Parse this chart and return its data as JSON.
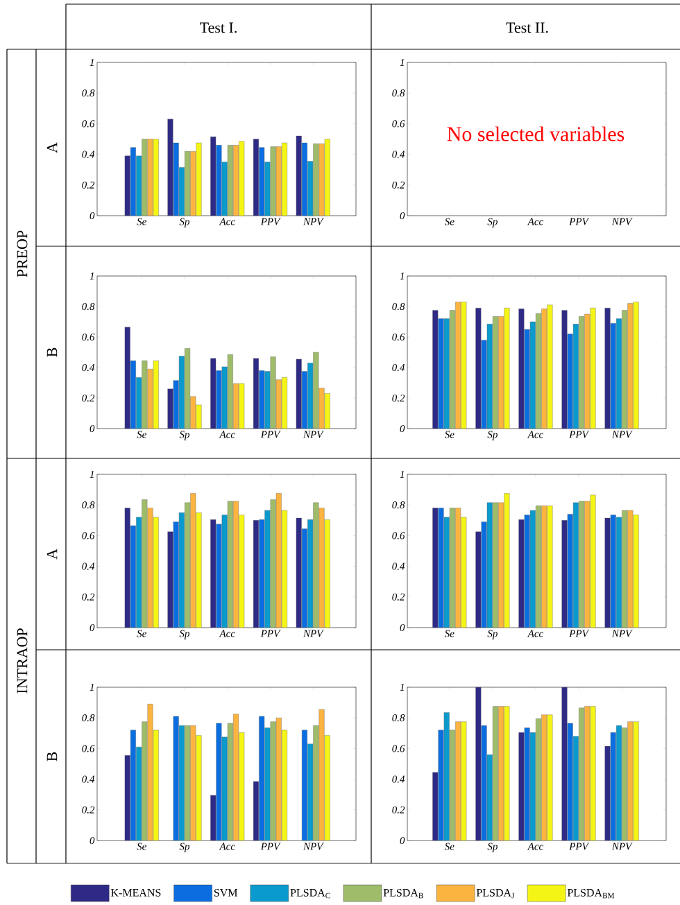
{
  "chart_data": [
    {
      "type": "other",
      "annotations": [
        "Test I.",
        "Test II.",
        "PREOP",
        "INTRAOP",
        "A",
        "B",
        "A",
        "B"
      ]
    },
    {
      "type": "bar",
      "categories": [
        "Se",
        "Sp",
        "Acc",
        "PPV",
        "NPV"
      ],
      "ylim": [
        0,
        1
      ],
      "yticks": [
        0,
        0.2,
        0.4,
        0.6,
        0.8,
        1
      ],
      "legend": "bottom",
      "series": [
        {
          "name": "K-MEANS",
          "color": "#2e2a85",
          "values": [
            0.39,
            0.63,
            0.515,
            0.5,
            0.52
          ]
        },
        {
          "name": "SVM",
          "color": "#0a6ee0",
          "values": [
            0.445,
            0.475,
            0.46,
            0.445,
            0.475
          ]
        },
        {
          "name": "PLSDA$_{C}$",
          "color": "#0a9acd",
          "values": [
            0.39,
            0.315,
            0.35,
            0.35,
            0.355
          ]
        },
        {
          "name": "PLSDA$_{B}$",
          "color": "#9ebc6a",
          "values": [
            0.5,
            0.42,
            0.46,
            0.45,
            0.47
          ]
        },
        {
          "name": "PLSDA$_{J}$",
          "color": "#fbb440",
          "values": [
            0.5,
            0.42,
            0.46,
            0.45,
            0.47
          ]
        },
        {
          "name": "PLSDA$_{BM}$",
          "color": "#f5f515",
          "values": [
            0.5,
            0.475,
            0.485,
            0.475,
            0.5
          ]
        }
      ]
    },
    {
      "type": "bar",
      "categories": [
        "Se",
        "Sp",
        "Acc",
        "PPV",
        "NPV"
      ],
      "ylim": [
        0,
        1
      ],
      "yticks": [
        0,
        0.2,
        0.4,
        0.6,
        0.8,
        1
      ],
      "annotations": [
        "No selected variables"
      ]
    },
    {
      "type": "bar",
      "categories": [
        "Se",
        "Sp",
        "Acc",
        "PPV",
        "NPV"
      ],
      "ylim": [
        0,
        1
      ],
      "yticks": [
        0,
        0.2,
        0.4,
        0.6,
        0.8,
        1
      ],
      "series": [
        {
          "color": "#2e2a85",
          "values": [
            0.665,
            0.26,
            0.46,
            0.46,
            0.455
          ]
        },
        {
          "color": "#0a6ee0",
          "values": [
            0.445,
            0.315,
            0.38,
            0.38,
            0.375
          ]
        },
        {
          "color": "#0a9acd",
          "values": [
            0.335,
            0.475,
            0.405,
            0.375,
            0.43
          ]
        },
        {
          "color": "#9ebc6a",
          "values": [
            0.445,
            0.525,
            0.485,
            0.47,
            0.5
          ]
        },
        {
          "color": "#fbb440",
          "values": [
            0.39,
            0.21,
            0.295,
            0.32,
            0.265
          ]
        },
        {
          "color": "#f5f515",
          "values": [
            0.445,
            0.155,
            0.295,
            0.335,
            0.23
          ]
        }
      ]
    },
    {
      "type": "bar",
      "categories": [
        "Se",
        "Sp",
        "Acc",
        "PPV",
        "NPV"
      ],
      "ylim": [
        0,
        1
      ],
      "yticks": [
        0,
        0.2,
        0.4,
        0.6,
        0.8,
        1
      ],
      "series": [
        {
          "color": "#2e2a85",
          "values": [
            0.775,
            0.79,
            0.785,
            0.775,
            0.79
          ]
        },
        {
          "color": "#0a6ee0",
          "values": [
            0.72,
            0.58,
            0.65,
            0.62,
            0.69
          ]
        },
        {
          "color": "#0a9acd",
          "values": [
            0.72,
            0.685,
            0.7,
            0.685,
            0.72
          ]
        },
        {
          "color": "#9ebc6a",
          "values": [
            0.775,
            0.735,
            0.755,
            0.735,
            0.775
          ]
        },
        {
          "color": "#fbb440",
          "values": [
            0.83,
            0.735,
            0.785,
            0.75,
            0.82
          ]
        },
        {
          "color": "#f5f515",
          "values": [
            0.83,
            0.79,
            0.81,
            0.79,
            0.83
          ]
        }
      ]
    },
    {
      "type": "bar",
      "categories": [
        "Se",
        "Sp",
        "Acc",
        "PPV",
        "NPV"
      ],
      "ylim": [
        0,
        1
      ],
      "yticks": [
        0,
        0.2,
        0.4,
        0.6,
        0.8,
        1
      ],
      "series": [
        {
          "color": "#2e2a85",
          "values": [
            0.78,
            0.625,
            0.705,
            0.7,
            0.715
          ]
        },
        {
          "color": "#0a6ee0",
          "values": [
            0.665,
            0.69,
            0.675,
            0.705,
            0.645
          ]
        },
        {
          "color": "#0a9acd",
          "values": [
            0.72,
            0.75,
            0.735,
            0.765,
            0.705
          ]
        },
        {
          "color": "#9ebc6a",
          "values": [
            0.835,
            0.815,
            0.825,
            0.835,
            0.815
          ]
        },
        {
          "color": "#fbb440",
          "values": [
            0.78,
            0.875,
            0.825,
            0.875,
            0.78
          ]
        },
        {
          "color": "#f5f515",
          "values": [
            0.72,
            0.75,
            0.735,
            0.765,
            0.705
          ]
        }
      ]
    },
    {
      "type": "bar",
      "categories": [
        "Se",
        "Sp",
        "Acc",
        "PPV",
        "NPV"
      ],
      "ylim": [
        0,
        1
      ],
      "yticks": [
        0,
        0.2,
        0.4,
        0.6,
        0.8,
        1
      ],
      "series": [
        {
          "color": "#2e2a85",
          "values": [
            0.78,
            0.625,
            0.705,
            0.7,
            0.715
          ]
        },
        {
          "color": "#0a6ee0",
          "values": [
            0.78,
            0.69,
            0.735,
            0.74,
            0.735
          ]
        },
        {
          "color": "#0a9acd",
          "values": [
            0.72,
            0.815,
            0.765,
            0.815,
            0.72
          ]
        },
        {
          "color": "#9ebc6a",
          "values": [
            0.78,
            0.815,
            0.795,
            0.825,
            0.765
          ]
        },
        {
          "color": "#fbb440",
          "values": [
            0.78,
            0.815,
            0.795,
            0.825,
            0.765
          ]
        },
        {
          "color": "#f5f515",
          "values": [
            0.72,
            0.875,
            0.795,
            0.865,
            0.735
          ]
        }
      ]
    },
    {
      "type": "bar",
      "categories": [
        "Se",
        "Sp",
        "Acc",
        "PPV",
        "NPV"
      ],
      "ylim": [
        0,
        1
      ],
      "yticks": [
        0,
        0.2,
        0.4,
        0.6,
        0.8,
        1
      ],
      "series": [
        {
          "color": "#2e2a85",
          "values": [
            0.555,
            null,
            0.295,
            0.385,
            null
          ]
        },
        {
          "color": "#0a6ee0",
          "values": [
            0.72,
            0.81,
            0.765,
            0.81,
            0.72
          ]
        },
        {
          "color": "#0a9acd",
          "values": [
            0.61,
            0.75,
            0.675,
            0.735,
            0.63
          ]
        },
        {
          "color": "#9ebc6a",
          "values": [
            0.775,
            0.75,
            0.765,
            0.775,
            0.75
          ]
        },
        {
          "color": "#fbb440",
          "values": [
            0.89,
            0.75,
            0.825,
            0.8,
            0.855
          ]
        },
        {
          "color": "#f5f515",
          "values": [
            0.72,
            0.685,
            0.705,
            0.72,
            0.685
          ]
        }
      ]
    },
    {
      "type": "bar",
      "categories": [
        "Se",
        "Sp",
        "Acc",
        "PPV",
        "NPV"
      ],
      "ylim": [
        0,
        1
      ],
      "yticks": [
        0,
        0.2,
        0.4,
        0.6,
        0.8,
        1
      ],
      "series": [
        {
          "color": "#2e2a85",
          "values": [
            0.445,
            1.0,
            0.705,
            1.0,
            0.615
          ]
        },
        {
          "color": "#0a6ee0",
          "values": [
            0.72,
            0.75,
            0.735,
            0.765,
            0.705
          ]
        },
        {
          "color": "#0a9acd",
          "values": [
            0.835,
            0.56,
            0.705,
            0.68,
            0.75
          ]
        },
        {
          "color": "#9ebc6a",
          "values": [
            0.72,
            0.875,
            0.795,
            0.865,
            0.735
          ]
        },
        {
          "color": "#fbb440",
          "values": [
            0.775,
            0.875,
            0.82,
            0.875,
            0.775
          ]
        },
        {
          "color": "#f5f515",
          "values": [
            0.775,
            0.875,
            0.82,
            0.875,
            0.775
          ]
        }
      ]
    }
  ]
}
